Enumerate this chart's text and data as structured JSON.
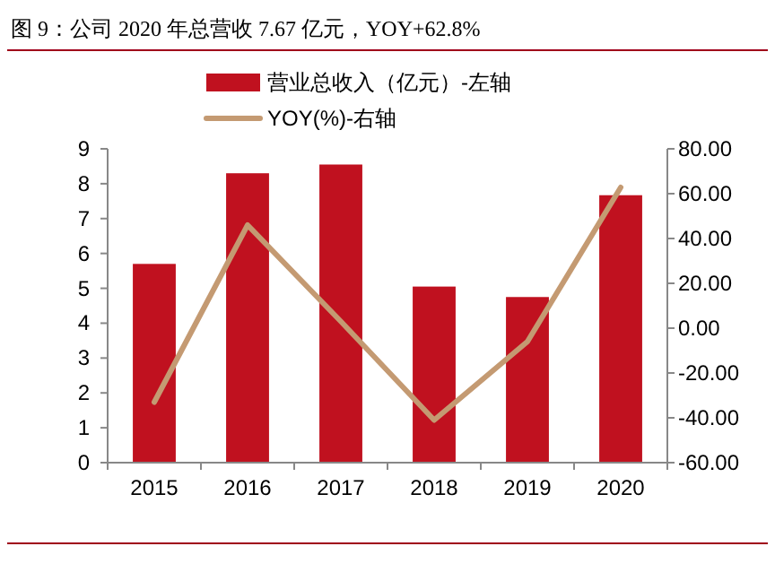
{
  "chart_data": {
    "type": "bar",
    "title": "图 9：公司 2020 年总营收 7.67 亿元，YOY+62.8%",
    "categories": [
      "2015",
      "2016",
      "2017",
      "2018",
      "2019",
      "2020"
    ],
    "series": [
      {
        "name": "营业总收入（亿元）-左轴",
        "color": "#c0111f",
        "values": [
          5.7,
          8.3,
          8.55,
          5.05,
          4.75,
          7.67
        ]
      },
      {
        "name": "YOY(%)-右轴",
        "type": "line",
        "axis": "y2",
        "color": "#c49a72",
        "values": [
          -33,
          46,
          3,
          -41,
          -6,
          62.8
        ]
      }
    ],
    "ylim": [
      0,
      9
    ],
    "yticks": [
      0,
      1,
      2,
      3,
      4,
      5,
      6,
      7,
      8,
      9
    ],
    "y2lim": [
      -60,
      80
    ],
    "y2ticks": [
      {
        "value": -60,
        "label": "-60.00"
      },
      {
        "value": -40,
        "label": "-40.00"
      },
      {
        "value": -20,
        "label": "-20.00"
      },
      {
        "value": 0,
        "label": "0.00"
      },
      {
        "value": 20,
        "label": "20.00"
      },
      {
        "value": 40,
        "label": "40.00"
      },
      {
        "value": 60,
        "label": "60.00"
      },
      {
        "value": 80,
        "label": "80.00"
      }
    ],
    "grid": false,
    "legend": "top"
  }
}
